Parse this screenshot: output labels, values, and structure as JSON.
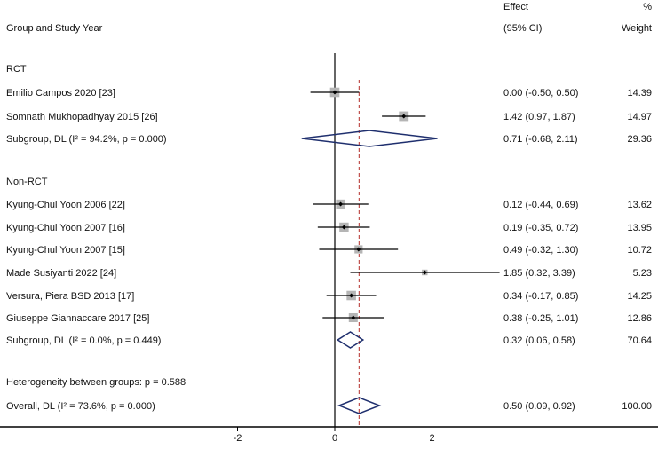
{
  "chart_data": {
    "type": "forest",
    "headers": {
      "study": "Group and Study Year",
      "effect_line1": "Effect",
      "effect_line2": "(95% CI)",
      "weight_line1": "%",
      "weight_line2": "Weight"
    },
    "xticks": [
      -2,
      0,
      2
    ],
    "xtick_labels": [
      "-2",
      "0",
      "2"
    ],
    "null_line": 0,
    "overall_line": 0.5,
    "colors": {
      "box": "#b5b5b5",
      "diamond": "#1f2f6e",
      "overall_line": "#c0504d",
      "line": "#000000"
    },
    "rows": [
      {
        "kind": "group",
        "label": "RCT"
      },
      {
        "kind": "study",
        "label": "Emilio Campos 2020 [23]",
        "est": 0.0,
        "lo": -0.5,
        "hi": 0.5,
        "ci_text": "0.00 (-0.50, 0.50)",
        "weight": 14.39,
        "weight_text": "14.39"
      },
      {
        "kind": "study",
        "label": "Somnath Mukhopadhyay 2015 [26]",
        "est": 1.42,
        "lo": 0.97,
        "hi": 1.87,
        "ci_text": "1.42 (0.97, 1.87)",
        "weight": 14.97,
        "weight_text": "14.97"
      },
      {
        "kind": "subgroup",
        "label": "Subgroup, DL (I² = 94.2%, p = 0.000)",
        "est": 0.71,
        "lo": -0.68,
        "hi": 2.11,
        "ci_text": "0.71 (-0.68, 2.11)",
        "weight_text": "29.36"
      },
      {
        "kind": "blank"
      },
      {
        "kind": "group",
        "label": "Non-RCT"
      },
      {
        "kind": "study",
        "label": "Kyung-Chul Yoon 2006 [22]",
        "est": 0.12,
        "lo": -0.44,
        "hi": 0.69,
        "ci_text": "0.12 (-0.44, 0.69)",
        "weight": 13.62,
        "weight_text": "13.62"
      },
      {
        "kind": "study",
        "label": "Kyung-Chul Yoon 2007 [16]",
        "est": 0.19,
        "lo": -0.35,
        "hi": 0.72,
        "ci_text": "0.19 (-0.35, 0.72)",
        "weight": 13.95,
        "weight_text": "13.95"
      },
      {
        "kind": "study",
        "label": "Kyung-Chul Yoon 2007 [15]",
        "est": 0.49,
        "lo": -0.32,
        "hi": 1.3,
        "ci_text": "0.49 (-0.32, 1.30)",
        "weight": 10.72,
        "weight_text": "10.72"
      },
      {
        "kind": "study",
        "label": "Made Susiyanti 2022 [24]",
        "est": 1.85,
        "lo": 0.32,
        "hi": 3.39,
        "ci_text": "1.85 (0.32, 3.39)",
        "weight": 5.23,
        "weight_text": "5.23"
      },
      {
        "kind": "study",
        "label": "Versura, Piera BSD 2013 [17]",
        "est": 0.34,
        "lo": -0.17,
        "hi": 0.85,
        "ci_text": "0.34 (-0.17, 0.85)",
        "weight": 14.25,
        "weight_text": "14.25"
      },
      {
        "kind": "study",
        "label": "Giuseppe Giannaccare 2017 [25]",
        "est": 0.38,
        "lo": -0.25,
        "hi": 1.01,
        "ci_text": "0.38 (-0.25, 1.01)",
        "weight": 12.86,
        "weight_text": "12.86"
      },
      {
        "kind": "subgroup",
        "label": "Subgroup, DL (I² = 0.0%, p = 0.449)",
        "est": 0.32,
        "lo": 0.06,
        "hi": 0.58,
        "ci_text": "0.32 (0.06, 0.58)",
        "weight_text": "70.64"
      },
      {
        "kind": "blank"
      },
      {
        "kind": "note",
        "label": "Heterogeneity between groups: p = 0.588"
      },
      {
        "kind": "overall",
        "label": "Overall, DL (I² = 73.6%, p = 0.000)",
        "est": 0.5,
        "lo": 0.09,
        "hi": 0.92,
        "ci_text": "0.50 (0.09, 0.92)",
        "weight_text": "100.00"
      }
    ]
  }
}
